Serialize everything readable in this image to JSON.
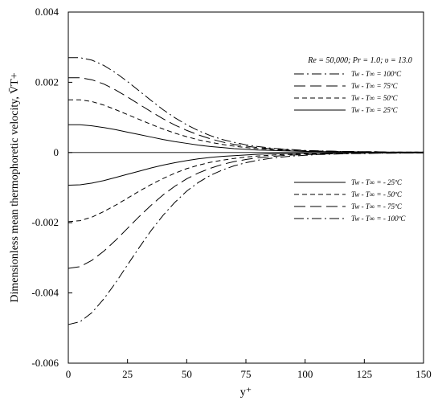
{
  "chart_data": {
    "type": "line",
    "title": "",
    "xlabel": "y⁺",
    "ylabel": "Dimensionless mean thermophoretic velocity, V̄T+",
    "xlim": [
      0,
      150
    ],
    "ylim": [
      -0.006,
      0.004
    ],
    "xticks": [
      0,
      25,
      50,
      75,
      100,
      125,
      150
    ],
    "xtick_labels": [
      "0",
      "25",
      "50",
      "75",
      "100",
      "125",
      "150"
    ],
    "yticks": [
      -0.006,
      -0.004,
      -0.002,
      0,
      0.002,
      0.004
    ],
    "ytick_labels": [
      "-0.006",
      "-0.004",
      "-0.002",
      "0",
      "0.002",
      "0.004"
    ],
    "grid": false,
    "annotation": "Re = 50,000; Pr = 1.0; υ = 13.0",
    "legend_groups": [
      {
        "placement": "right-upper",
        "entries": [
          {
            "series": 3,
            "label": "Tw - T∞ = 100ºC"
          },
          {
            "series": 2,
            "label": "Tw - T∞ = 75ºC"
          },
          {
            "series": 1,
            "label": "Tw - T∞ = 50ºC"
          },
          {
            "series": 0,
            "label": "Tw - T∞ = 25ºC"
          }
        ]
      },
      {
        "placement": "right-lower",
        "entries": [
          {
            "series": 4,
            "label": "Tw - T∞ = - 25ºC"
          },
          {
            "series": 5,
            "label": "Tw - T∞ = - 50ºC"
          },
          {
            "series": 6,
            "label": "Tw - T∞ = - 75ºC"
          },
          {
            "series": 7,
            "label": "Tw - T∞ = - 100ºC"
          }
        ]
      }
    ],
    "x": [
      0,
      5,
      10,
      15,
      20,
      25,
      30,
      35,
      40,
      45,
      50,
      55,
      60,
      65,
      70,
      75,
      80,
      85,
      90,
      95,
      100,
      105,
      110,
      115,
      120,
      125,
      130,
      135,
      140,
      145,
      150
    ],
    "series": [
      {
        "name": "Tw - T∞ = 25ºC",
        "style": "solid",
        "values": [
          0.00079,
          0.00079,
          0.00076,
          0.00071,
          0.00065,
          0.00058,
          0.00051,
          0.00044,
          0.00037,
          0.00031,
          0.00026,
          0.00021,
          0.00017,
          0.00014,
          0.00011,
          9e-05,
          7e-05,
          6e-05,
          5e-05,
          4e-05,
          3e-05,
          3e-05,
          2e-05,
          2e-05,
          2e-05,
          1e-05,
          1e-05,
          1e-05,
          1e-05,
          1e-05,
          1e-05
        ]
      },
      {
        "name": "Tw - T∞ = 50ºC",
        "style": "dash",
        "values": [
          0.0015,
          0.0015,
          0.00145,
          0.00135,
          0.00122,
          0.00108,
          0.00094,
          0.0008,
          0.00067,
          0.00055,
          0.00045,
          0.00036,
          0.00029,
          0.00023,
          0.00018,
          0.00014,
          0.00011,
          9e-05,
          7e-05,
          6e-05,
          5e-05,
          4e-05,
          3e-05,
          3e-05,
          2e-05,
          2e-05,
          2e-05,
          1e-05,
          1e-05,
          1e-05,
          1e-05
        ]
      },
      {
        "name": "Tw - T∞ = 75ºC",
        "style": "longdash",
        "values": [
          0.00213,
          0.00213,
          0.00207,
          0.00195,
          0.00178,
          0.00158,
          0.00137,
          0.00116,
          0.00096,
          0.00078,
          0.00063,
          0.0005,
          0.00039,
          0.0003,
          0.00023,
          0.00018,
          0.00014,
          0.00011,
          9e-05,
          7e-05,
          5e-05,
          4e-05,
          4e-05,
          3e-05,
          2e-05,
          2e-05,
          2e-05,
          1e-05,
          1e-05,
          1e-05,
          1e-05
        ]
      },
      {
        "name": "Tw - T∞ = 100ºC",
        "style": "dashdot",
        "values": [
          0.0027,
          0.0027,
          0.00263,
          0.00248,
          0.00227,
          0.00202,
          0.00175,
          0.00148,
          0.00122,
          0.00099,
          0.00079,
          0.00062,
          0.00048,
          0.00037,
          0.00029,
          0.00022,
          0.00017,
          0.00013,
          0.0001,
          8e-05,
          6e-05,
          5e-05,
          4e-05,
          3e-05,
          3e-05,
          2e-05,
          2e-05,
          1e-05,
          1e-05,
          1e-05,
          1e-05
        ]
      },
      {
        "name": "Tw - T∞ = - 25ºC",
        "style": "solid",
        "values": [
          -0.00093,
          -0.00092,
          -0.00087,
          -0.0008,
          -0.00071,
          -0.00062,
          -0.00053,
          -0.00044,
          -0.00036,
          -0.00029,
          -0.00023,
          -0.00018,
          -0.00014,
          -0.00011,
          -9e-05,
          -7e-05,
          -5e-05,
          -4e-05,
          -3e-05,
          -3e-05,
          -2e-05,
          -2e-05,
          -2e-05,
          -1e-05,
          -1e-05,
          -1e-05,
          -1e-05,
          -1e-05,
          -1e-05,
          -1e-05,
          -1e-05
        ]
      },
      {
        "name": "Tw - T∞ = - 50ºC",
        "style": "dash",
        "values": [
          -0.00197,
          -0.00194,
          -0.00184,
          -0.00168,
          -0.0015,
          -0.0013,
          -0.0011,
          -0.00091,
          -0.00074,
          -0.00059,
          -0.00046,
          -0.00036,
          -0.00028,
          -0.00022,
          -0.00017,
          -0.00013,
          -0.0001,
          -8e-05,
          -6e-05,
          -5e-05,
          -4e-05,
          -3e-05,
          -3e-05,
          -2e-05,
          -2e-05,
          -2e-05,
          -1e-05,
          -1e-05,
          -1e-05,
          -1e-05,
          -1e-05
        ]
      },
      {
        "name": "Tw - T∞ = - 75ºC",
        "style": "longdash",
        "values": [
          -0.0033,
          -0.00325,
          -0.00307,
          -0.00281,
          -0.0025,
          -0.00216,
          -0.00182,
          -0.0015,
          -0.00121,
          -0.00096,
          -0.00075,
          -0.00058,
          -0.00045,
          -0.00034,
          -0.00026,
          -0.0002,
          -0.00015,
          -0.00012,
          -9e-05,
          -7e-05,
          -6e-05,
          -5e-05,
          -4e-05,
          -3e-05,
          -3e-05,
          -2e-05,
          -2e-05,
          -2e-05,
          -1e-05,
          -1e-05,
          -1e-05
        ]
      },
      {
        "name": "Tw - T∞ = - 100ºC",
        "style": "dashdot",
        "values": [
          -0.0049,
          -0.00482,
          -0.00456,
          -0.00417,
          -0.00371,
          -0.0032,
          -0.0027,
          -0.00222,
          -0.00179,
          -0.00142,
          -0.0011,
          -0.00085,
          -0.00065,
          -0.0005,
          -0.00038,
          -0.00029,
          -0.00022,
          -0.00017,
          -0.00013,
          -0.0001,
          -8e-05,
          -6e-05,
          -5e-05,
          -4e-05,
          -3e-05,
          -3e-05,
          -2e-05,
          -2e-05,
          -2e-05,
          -1e-05,
          -1e-05
        ]
      }
    ]
  }
}
